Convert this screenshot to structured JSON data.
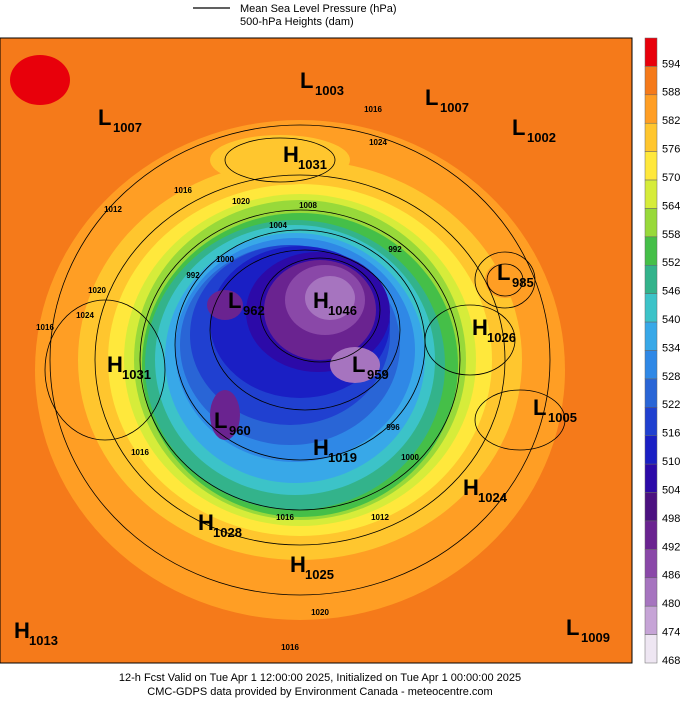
{
  "legend": [
    "Mean Sea Level Pressure (hPa)",
    "500-hPa Heights (dam)"
  ],
  "colorbar": {
    "levels": [
      594,
      588,
      582,
      576,
      570,
      564,
      558,
      552,
      546,
      540,
      534,
      528,
      522,
      516,
      510,
      504,
      498,
      492,
      486,
      480,
      474,
      468
    ],
    "colors": [
      "#e8000b",
      "#f57a1a",
      "#ff9e24",
      "#ffc62e",
      "#ffe83c",
      "#d6ec3a",
      "#98d93a",
      "#45bf48",
      "#33b38b",
      "#3cc3c8",
      "#38a8e8",
      "#2f88e6",
      "#2965d6",
      "#2040d0",
      "#1a1fc4",
      "#2c0aa8",
      "#4b1180",
      "#6a2390",
      "#8a48a8",
      "#a674bf",
      "#c6a4d6",
      "#eee6f2"
    ]
  },
  "centers": [
    {
      "letter": "L",
      "value": 1003
    },
    {
      "letter": "L",
      "value": 1007
    },
    {
      "letter": "L",
      "value": 1007
    },
    {
      "letter": "L",
      "value": 1002
    },
    {
      "letter": "H",
      "value": 1031
    },
    {
      "letter": "L",
      "value": 985
    },
    {
      "letter": "H",
      "value": 1046
    },
    {
      "letter": "L",
      "value": 962
    },
    {
      "letter": "H",
      "value": 1026
    },
    {
      "letter": "H",
      "value": 1031
    },
    {
      "letter": "L",
      "value": 959
    },
    {
      "letter": "L",
      "value": 1005
    },
    {
      "letter": "L",
      "value": 960
    },
    {
      "letter": "H",
      "value": 1019
    },
    {
      "letter": "H",
      "value": 1024
    },
    {
      "letter": "H",
      "value": 1028
    },
    {
      "letter": "H",
      "value": 1025
    },
    {
      "letter": "H",
      "value": 1013
    },
    {
      "letter": "L",
      "value": 1009
    }
  ],
  "isobar_labels": [
    1016,
    1024,
    1016,
    1012,
    1020,
    1016,
    1020,
    1024,
    1008,
    1004,
    1000,
    992,
    992,
    996,
    1000,
    1012,
    1016,
    1020,
    1016,
    1016
  ],
  "footer": [
    "12-h Fcst Valid on Tue Apr  1 12:00:00 2025, Initialized on Tue Apr  1 00:00:00 2025",
    "CMC-GDPS data provided by Environment Canada - meteocentre.com"
  ]
}
